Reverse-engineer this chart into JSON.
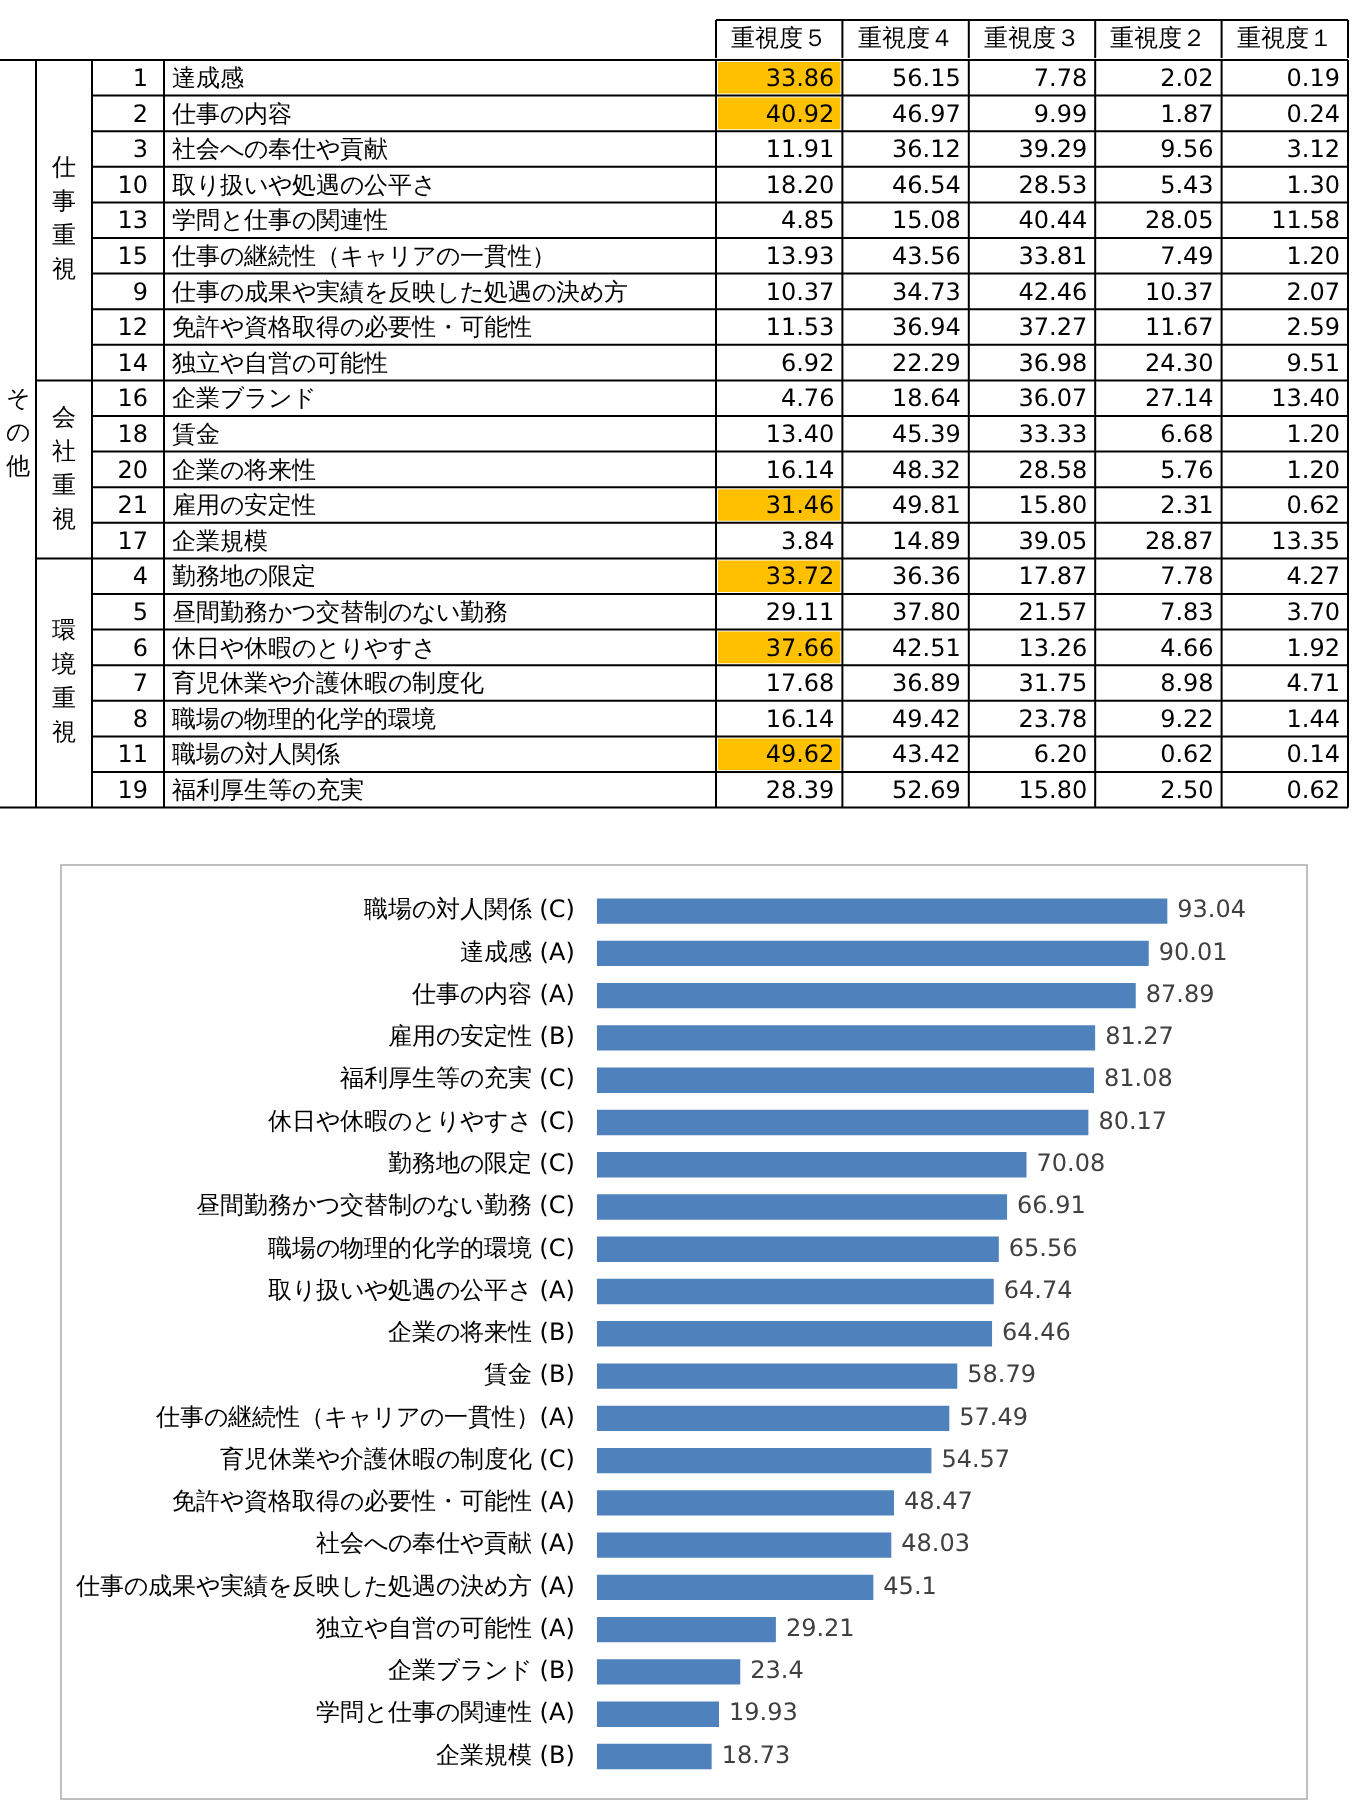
{
  "chart_data": [
    {
      "type": "heatmap",
      "categories": [
        "重視度５",
        "重視度４",
        "重視度３",
        "重視度２",
        "重視度１"
      ],
      "y2_categories": [
        "1",
        "2",
        "3",
        "10",
        "13",
        "15",
        "9",
        "12",
        "14",
        "16",
        "18",
        "20",
        "21",
        "17",
        "4",
        "5",
        "6",
        "7",
        "8",
        "11",
        "19"
      ],
      "y_categories": [
        "達成感",
        "仕事の内容",
        "社会への奉仕や貢献",
        "取り扱いや処遇の公平さ",
        "学問と仕事の関連性",
        "仕事の継続性（キャリアの一貫性）",
        "仕事の成果や実績を反映した処遇の決め方",
        "免許や資格取得の必要性・可能性",
        "独立や自営の可能性",
        "企業ブランド",
        "賃金",
        "企業の将来性",
        "雇用の安定性",
        "企業規模",
        "勤務地の限定",
        "昼間勤務かつ交替制のない勤務",
        "休日や休暇のとりやすさ",
        "育児休業や介護休暇の制度化",
        "職場の物理的化学的環境",
        "職場の対人関係",
        "福利厚生等の充実"
      ],
      "cells": [
        [
          33.86,
          56.15,
          7.78,
          2.02,
          0.19
        ],
        [
          40.92,
          46.97,
          9.99,
          1.87,
          0.24
        ],
        [
          11.91,
          36.12,
          39.29,
          9.56,
          3.12
        ],
        [
          18.2,
          46.54,
          28.53,
          5.43,
          1.3
        ],
        [
          4.85,
          15.08,
          40.44,
          28.05,
          11.58
        ],
        [
          13.93,
          43.56,
          33.81,
          7.49,
          1.2
        ],
        [
          10.37,
          34.73,
          42.46,
          10.37,
          2.07
        ],
        [
          11.53,
          36.94,
          37.27,
          11.67,
          2.59
        ],
        [
          6.92,
          22.29,
          36.98,
          24.3,
          9.51
        ],
        [
          4.76,
          18.64,
          36.07,
          27.14,
          13.4
        ],
        [
          13.4,
          45.39,
          33.33,
          6.68,
          1.2
        ],
        [
          16.14,
          48.32,
          28.58,
          5.76,
          1.2
        ],
        [
          31.46,
          49.81,
          15.8,
          2.31,
          0.62
        ],
        [
          3.84,
          14.89,
          39.05,
          28.87,
          13.35
        ],
        [
          33.72,
          36.36,
          17.87,
          7.78,
          4.27
        ],
        [
          29.11,
          37.8,
          21.57,
          7.83,
          3.7
        ],
        [
          37.66,
          42.51,
          13.26,
          4.66,
          1.92
        ],
        [
          17.68,
          36.89,
          31.75,
          8.98,
          4.71
        ],
        [
          16.14,
          49.42,
          23.78,
          9.22,
          1.44
        ],
        [
          49.62,
          43.42,
          6.2,
          0.62,
          0.14
        ],
        [
          28.39,
          52.69,
          15.8,
          2.5,
          0.62
        ]
      ],
      "cell_labels": [
        [
          "33.86",
          "56.15",
          "7.78",
          "2.02",
          "0.19"
        ],
        [
          "40.92",
          "46.97",
          "9.99",
          "1.87",
          "0.24"
        ],
        [
          "11.91",
          "36.12",
          "39.29",
          "9.56",
          "3.12"
        ],
        [
          "18.20",
          "46.54",
          "28.53",
          "5.43",
          "1.30"
        ],
        [
          "4.85",
          "15.08",
          "40.44",
          "28.05",
          "11.58"
        ],
        [
          "13.93",
          "43.56",
          "33.81",
          "7.49",
          "1.20"
        ],
        [
          "10.37",
          "34.73",
          "42.46",
          "10.37",
          "2.07"
        ],
        [
          "11.53",
          "36.94",
          "37.27",
          "11.67",
          "2.59"
        ],
        [
          "6.92",
          "22.29",
          "36.98",
          "24.30",
          "9.51"
        ],
        [
          "4.76",
          "18.64",
          "36.07",
          "27.14",
          "13.40"
        ],
        [
          "13.40",
          "45.39",
          "33.33",
          "6.68",
          "1.20"
        ],
        [
          "16.14",
          "48.32",
          "28.58",
          "5.76",
          "1.20"
        ],
        [
          "31.46",
          "49.81",
          "15.80",
          "2.31",
          "0.62"
        ],
        [
          "3.84",
          "14.89",
          "39.05",
          "28.87",
          "13.35"
        ],
        [
          "33.72",
          "36.36",
          "17.87",
          "7.78",
          "4.27"
        ],
        [
          "29.11",
          "37.80",
          "21.57",
          "7.83",
          "3.70"
        ],
        [
          "37.66",
          "42.51",
          "13.26",
          "4.66",
          "1.92"
        ],
        [
          "17.68",
          "36.89",
          "31.75",
          "8.98",
          "4.71"
        ],
        [
          "16.14",
          "49.42",
          "23.78",
          "9.22",
          "1.44"
        ],
        [
          "49.62",
          "43.42",
          "6.20",
          "0.62",
          "0.14"
        ],
        [
          "28.39",
          "52.69",
          "15.80",
          "2.50",
          "0.62"
        ]
      ],
      "colors": [
        [
          "#ffc000",
          null,
          null,
          null,
          null
        ],
        [
          "#ffc000",
          null,
          null,
          null,
          null
        ],
        [
          null,
          null,
          null,
          null,
          null
        ],
        [
          null,
          null,
          null,
          null,
          null
        ],
        [
          null,
          null,
          null,
          null,
          null
        ],
        [
          null,
          null,
          null,
          null,
          null
        ],
        [
          null,
          null,
          null,
          null,
          null
        ],
        [
          null,
          null,
          null,
          null,
          null
        ],
        [
          null,
          null,
          null,
          null,
          null
        ],
        [
          null,
          null,
          null,
          null,
          null
        ],
        [
          null,
          null,
          null,
          null,
          null
        ],
        [
          null,
          null,
          null,
          null,
          null
        ],
        [
          "#ffc000",
          null,
          null,
          null,
          null
        ],
        [
          null,
          null,
          null,
          null,
          null
        ],
        [
          "#ffc000",
          null,
          null,
          null,
          null
        ],
        [
          null,
          null,
          null,
          null,
          null
        ],
        [
          "#ffc000",
          null,
          null,
          null,
          null
        ],
        [
          null,
          null,
          null,
          null,
          null
        ],
        [
          null,
          null,
          null,
          null,
          null
        ],
        [
          "#ffc000",
          null,
          null,
          null,
          null
        ],
        [
          null,
          null,
          null,
          null,
          null
        ]
      ],
      "annotations": [
        "その他",
        "仕事重視",
        "会社重視",
        "環境重視"
      ],
      "grid": true
    },
    {
      "type": "bar",
      "orientation": "horizontal",
      "categories": [
        "職場の対人関係 (C)",
        "達成感 (A)",
        "仕事の内容 (A)",
        "雇用の安定性 (B)",
        "福利厚生等の充実 (C)",
        "休日や休暇のとりやすさ (C)",
        "勤務地の限定 (C)",
        "昼間勤務かつ交替制のない勤務 (C)",
        "職場の物理的化学的環境 (C)",
        "取り扱いや処遇の公平さ (A)",
        "企業の将来性 (B)",
        "賃金 (B)",
        "仕事の継続性（キャリアの一貫性）(A)",
        "育児休業や介護休暇の制度化 (C)",
        "免許や資格取得の必要性・可能性 (A)",
        "社会への奉仕や貢献 (A)",
        "仕事の成果や実績を反映した処遇の決め方 (A)",
        "独立や自営の可能性 (A)",
        "企業ブランド (B)",
        "学問と仕事の関連性 (A)",
        "企業規模 (B)"
      ],
      "values": [
        93.04,
        90.01,
        87.89,
        81.27,
        81.08,
        80.17,
        70.08,
        66.91,
        65.56,
        64.74,
        64.46,
        58.79,
        57.49,
        54.57,
        48.47,
        48.03,
        45.1,
        29.21,
        23.4,
        19.93,
        18.73
      ],
      "color": "#4f81bd",
      "data_labels": true,
      "tick_labels": "y"
    }
  ]
}
